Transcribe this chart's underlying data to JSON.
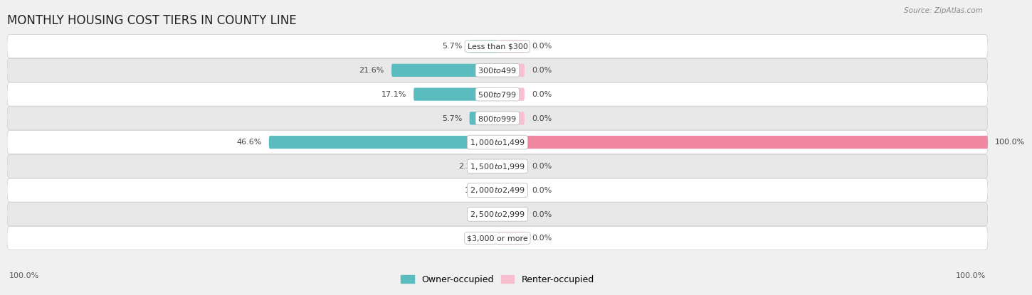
{
  "title": "MONTHLY HOUSING COST TIERS IN COUNTY LINE",
  "source": "Source: ZipAtlas.com",
  "categories": [
    "Less than $300",
    "$300 to $499",
    "$500 to $799",
    "$800 to $999",
    "$1,000 to $1,499",
    "$1,500 to $1,999",
    "$2,000 to $2,499",
    "$2,500 to $2,999",
    "$3,000 or more"
  ],
  "owner_values": [
    5.7,
    21.6,
    17.1,
    5.7,
    46.6,
    2.3,
    1.1,
    0.0,
    0.0
  ],
  "renter_values": [
    0.0,
    0.0,
    0.0,
    0.0,
    100.0,
    0.0,
    0.0,
    0.0,
    0.0
  ],
  "owner_color": "#5bbcbf",
  "renter_color": "#f087a0",
  "renter_color_light": "#f7bfcf",
  "bar_height": 0.52,
  "background_color": "#f0f0f0",
  "row_bg_color": "#ffffff",
  "row_alt_bg": "#e8e8e8",
  "owner_scale": 100.0,
  "renter_scale": 100.0,
  "xlim_left": -100,
  "xlim_right": 100,
  "title_fontsize": 12,
  "label_fontsize": 8,
  "tick_fontsize": 8,
  "legend_fontsize": 9,
  "axis_label_left": "100.0%",
  "axis_label_right": "100.0%"
}
